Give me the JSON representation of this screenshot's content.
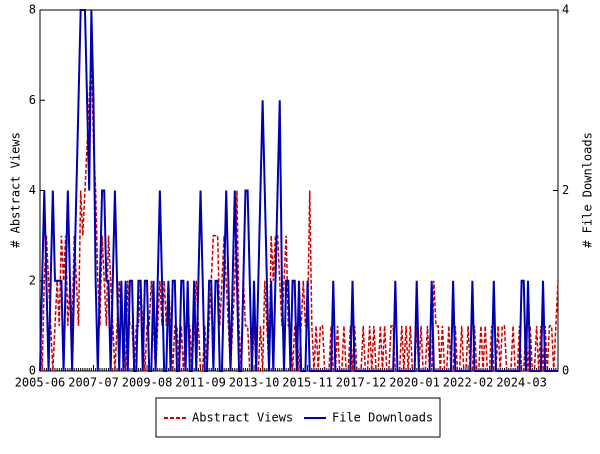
{
  "chart_data": {
    "type": "line",
    "categories": [
      "2005-06",
      null,
      null,
      null,
      null,
      null,
      null,
      null,
      null,
      null,
      null,
      null,
      null,
      null,
      null,
      null,
      null,
      null,
      null,
      null,
      null,
      null,
      null,
      null,
      null,
      "2007-07",
      null,
      null,
      null,
      null,
      null,
      null,
      null,
      null,
      null,
      null,
      null,
      null,
      null,
      null,
      null,
      null,
      null,
      null,
      null,
      null,
      null,
      null,
      null,
      null,
      "2009-08",
      null,
      null,
      null,
      null,
      null,
      null,
      null,
      null,
      null,
      null,
      null,
      null,
      null,
      null,
      null,
      null,
      null,
      null,
      null,
      null,
      null,
      null,
      null,
      null,
      "2011-09",
      null,
      null,
      null,
      null,
      null,
      null,
      null,
      null,
      null,
      null,
      null,
      null,
      null,
      null,
      null,
      null,
      null,
      null,
      null,
      null,
      null,
      null,
      null,
      null,
      "2013-10",
      null,
      null,
      null,
      null,
      null,
      null,
      null,
      null,
      null,
      null,
      null,
      null,
      null,
      null,
      null,
      null,
      null,
      null,
      null,
      null,
      null,
      null,
      null,
      null,
      "2015-11",
      null,
      null,
      null,
      null,
      null,
      null,
      null,
      null,
      null,
      null,
      null,
      null,
      null,
      null,
      null,
      null,
      null,
      null,
      null,
      null,
      null,
      null,
      null,
      null,
      "2017-12",
      null,
      null,
      null,
      null,
      null,
      null,
      null,
      null,
      null,
      null,
      null,
      null,
      null,
      null,
      null,
      null,
      null,
      null,
      null,
      null,
      null,
      null,
      null,
      null,
      "2020-01",
      null,
      null,
      null,
      null,
      null,
      null,
      null,
      null,
      null,
      null,
      null,
      null,
      null,
      null,
      null,
      null,
      null,
      null,
      null,
      null,
      null,
      null,
      null,
      null,
      "2022-02",
      null,
      null,
      null,
      null,
      null,
      null,
      null,
      null,
      null,
      null,
      null,
      null,
      null,
      null,
      null,
      null,
      null,
      null,
      null,
      null,
      null,
      null,
      null,
      null,
      "2024-03",
      null,
      null,
      null,
      null,
      null,
      null,
      null,
      null,
      null,
      null,
      null,
      null,
      null,
      null,
      null,
      null,
      null
    ],
    "series": [
      {
        "name": "Abstract Views",
        "color": "#cc0000",
        "dash": true,
        "axis": "y",
        "values": [
          1,
          0,
          2,
          3,
          2,
          1,
          0,
          1,
          2,
          1,
          3,
          2,
          3,
          1,
          2,
          1,
          3,
          2,
          1,
          4,
          3,
          4,
          5,
          6,
          7,
          5,
          4,
          2,
          1,
          3,
          2,
          1,
          3,
          2,
          1,
          0,
          1,
          2,
          1,
          1,
          0,
          2,
          1,
          1,
          0,
          1,
          1,
          2,
          1,
          0,
          1,
          1,
          2,
          1,
          0,
          1,
          2,
          1,
          2,
          1,
          2,
          1,
          0,
          1,
          1,
          0,
          1,
          0,
          1,
          1,
          1,
          0,
          1,
          2,
          1,
          0,
          0,
          1,
          0,
          1,
          2,
          3,
          3,
          3,
          1,
          2,
          3,
          2,
          1,
          0,
          1,
          2,
          4,
          1,
          0,
          2,
          1,
          1,
          0,
          0,
          1,
          0,
          0,
          1,
          0,
          2,
          1,
          0,
          3,
          2,
          3,
          3,
          2,
          1,
          2,
          3,
          1,
          1,
          0,
          1,
          1,
          0,
          1,
          2,
          1,
          1,
          4,
          1,
          0,
          1,
          0,
          1,
          1,
          0,
          0,
          0,
          1,
          0,
          0,
          1,
          0,
          0,
          1,
          0,
          0,
          1,
          0,
          1,
          0,
          0,
          0,
          1,
          0,
          0,
          1,
          0,
          1,
          0,
          0,
          1,
          0,
          1,
          0,
          0,
          1,
          1,
          0,
          0,
          0,
          1,
          0,
          1,
          0,
          1,
          0,
          0,
          1,
          0,
          1,
          0,
          0,
          1,
          0,
          0,
          2,
          1,
          1,
          0,
          1,
          0,
          0,
          1,
          0,
          0,
          1,
          0,
          0,
          1,
          0,
          0,
          1,
          0,
          0,
          1,
          0,
          0,
          1,
          0,
          1,
          0,
          0,
          1,
          0,
          0,
          1,
          0,
          1,
          1,
          0,
          0,
          0,
          1,
          0,
          0,
          1,
          0,
          0,
          1,
          0,
          1,
          0,
          0,
          1,
          0,
          1,
          0,
          1,
          0,
          1,
          1,
          0,
          1,
          2
        ]
      },
      {
        "name": "File Downloads",
        "color": "#0000b0",
        "dash": false,
        "axis": "y2",
        "values": [
          0,
          1,
          2,
          1,
          0,
          1,
          2,
          1,
          1,
          1,
          1,
          0,
          1,
          2,
          1,
          0,
          1,
          2,
          3,
          4,
          4,
          4,
          3,
          2,
          4,
          3,
          1,
          0,
          1,
          2,
          2,
          1,
          1,
          0,
          1,
          2,
          1,
          0,
          1,
          0,
          1,
          0,
          1,
          1,
          0,
          0,
          1,
          1,
          0,
          1,
          1,
          0,
          0,
          1,
          0,
          1,
          2,
          1,
          0,
          0,
          1,
          0,
          1,
          1,
          0,
          0,
          1,
          1,
          0,
          1,
          0,
          0,
          1,
          0,
          1,
          2,
          1,
          0,
          0,
          1,
          1,
          0,
          1,
          1,
          0,
          0,
          1,
          2,
          1,
          0,
          1,
          2,
          1,
          0,
          0,
          1,
          2,
          2,
          1,
          0,
          1,
          0,
          1,
          2,
          3,
          2,
          1,
          0,
          1,
          0,
          1,
          2,
          3,
          1,
          0,
          1,
          1,
          0,
          1,
          1,
          0,
          1,
          0,
          0,
          0,
          1,
          0,
          0,
          0,
          0,
          0,
          0,
          0,
          0,
          0,
          0,
          0,
          1,
          0,
          0,
          0,
          0,
          0,
          0,
          0,
          0,
          1,
          0,
          0,
          0,
          0,
          0,
          0,
          0,
          0,
          0,
          0,
          0,
          0,
          0,
          0,
          0,
          0,
          0,
          0,
          0,
          1,
          0,
          0,
          0,
          0,
          0,
          0,
          0,
          0,
          0,
          1,
          0,
          0,
          0,
          0,
          0,
          0,
          1,
          0,
          0,
          0,
          0,
          0,
          0,
          0,
          0,
          0,
          1,
          0,
          0,
          0,
          0,
          0,
          0,
          0,
          0,
          1,
          0,
          0,
          0,
          0,
          0,
          0,
          0,
          0,
          0,
          1,
          0,
          0,
          0,
          0,
          0,
          0,
          0,
          0,
          0,
          0,
          0,
          0,
          1,
          1,
          0,
          1,
          0,
          0,
          0,
          0,
          0,
          0,
          1,
          0,
          0,
          0,
          0,
          0,
          0,
          0
        ]
      }
    ],
    "ylabel": "# Abstract Views",
    "y2label": "# File Downloads",
    "ylim": [
      0,
      8
    ],
    "yticks": [
      0,
      2,
      4,
      6,
      8
    ],
    "y2lim": [
      0,
      4
    ],
    "y2ticks": [
      0,
      2,
      4
    ]
  }
}
